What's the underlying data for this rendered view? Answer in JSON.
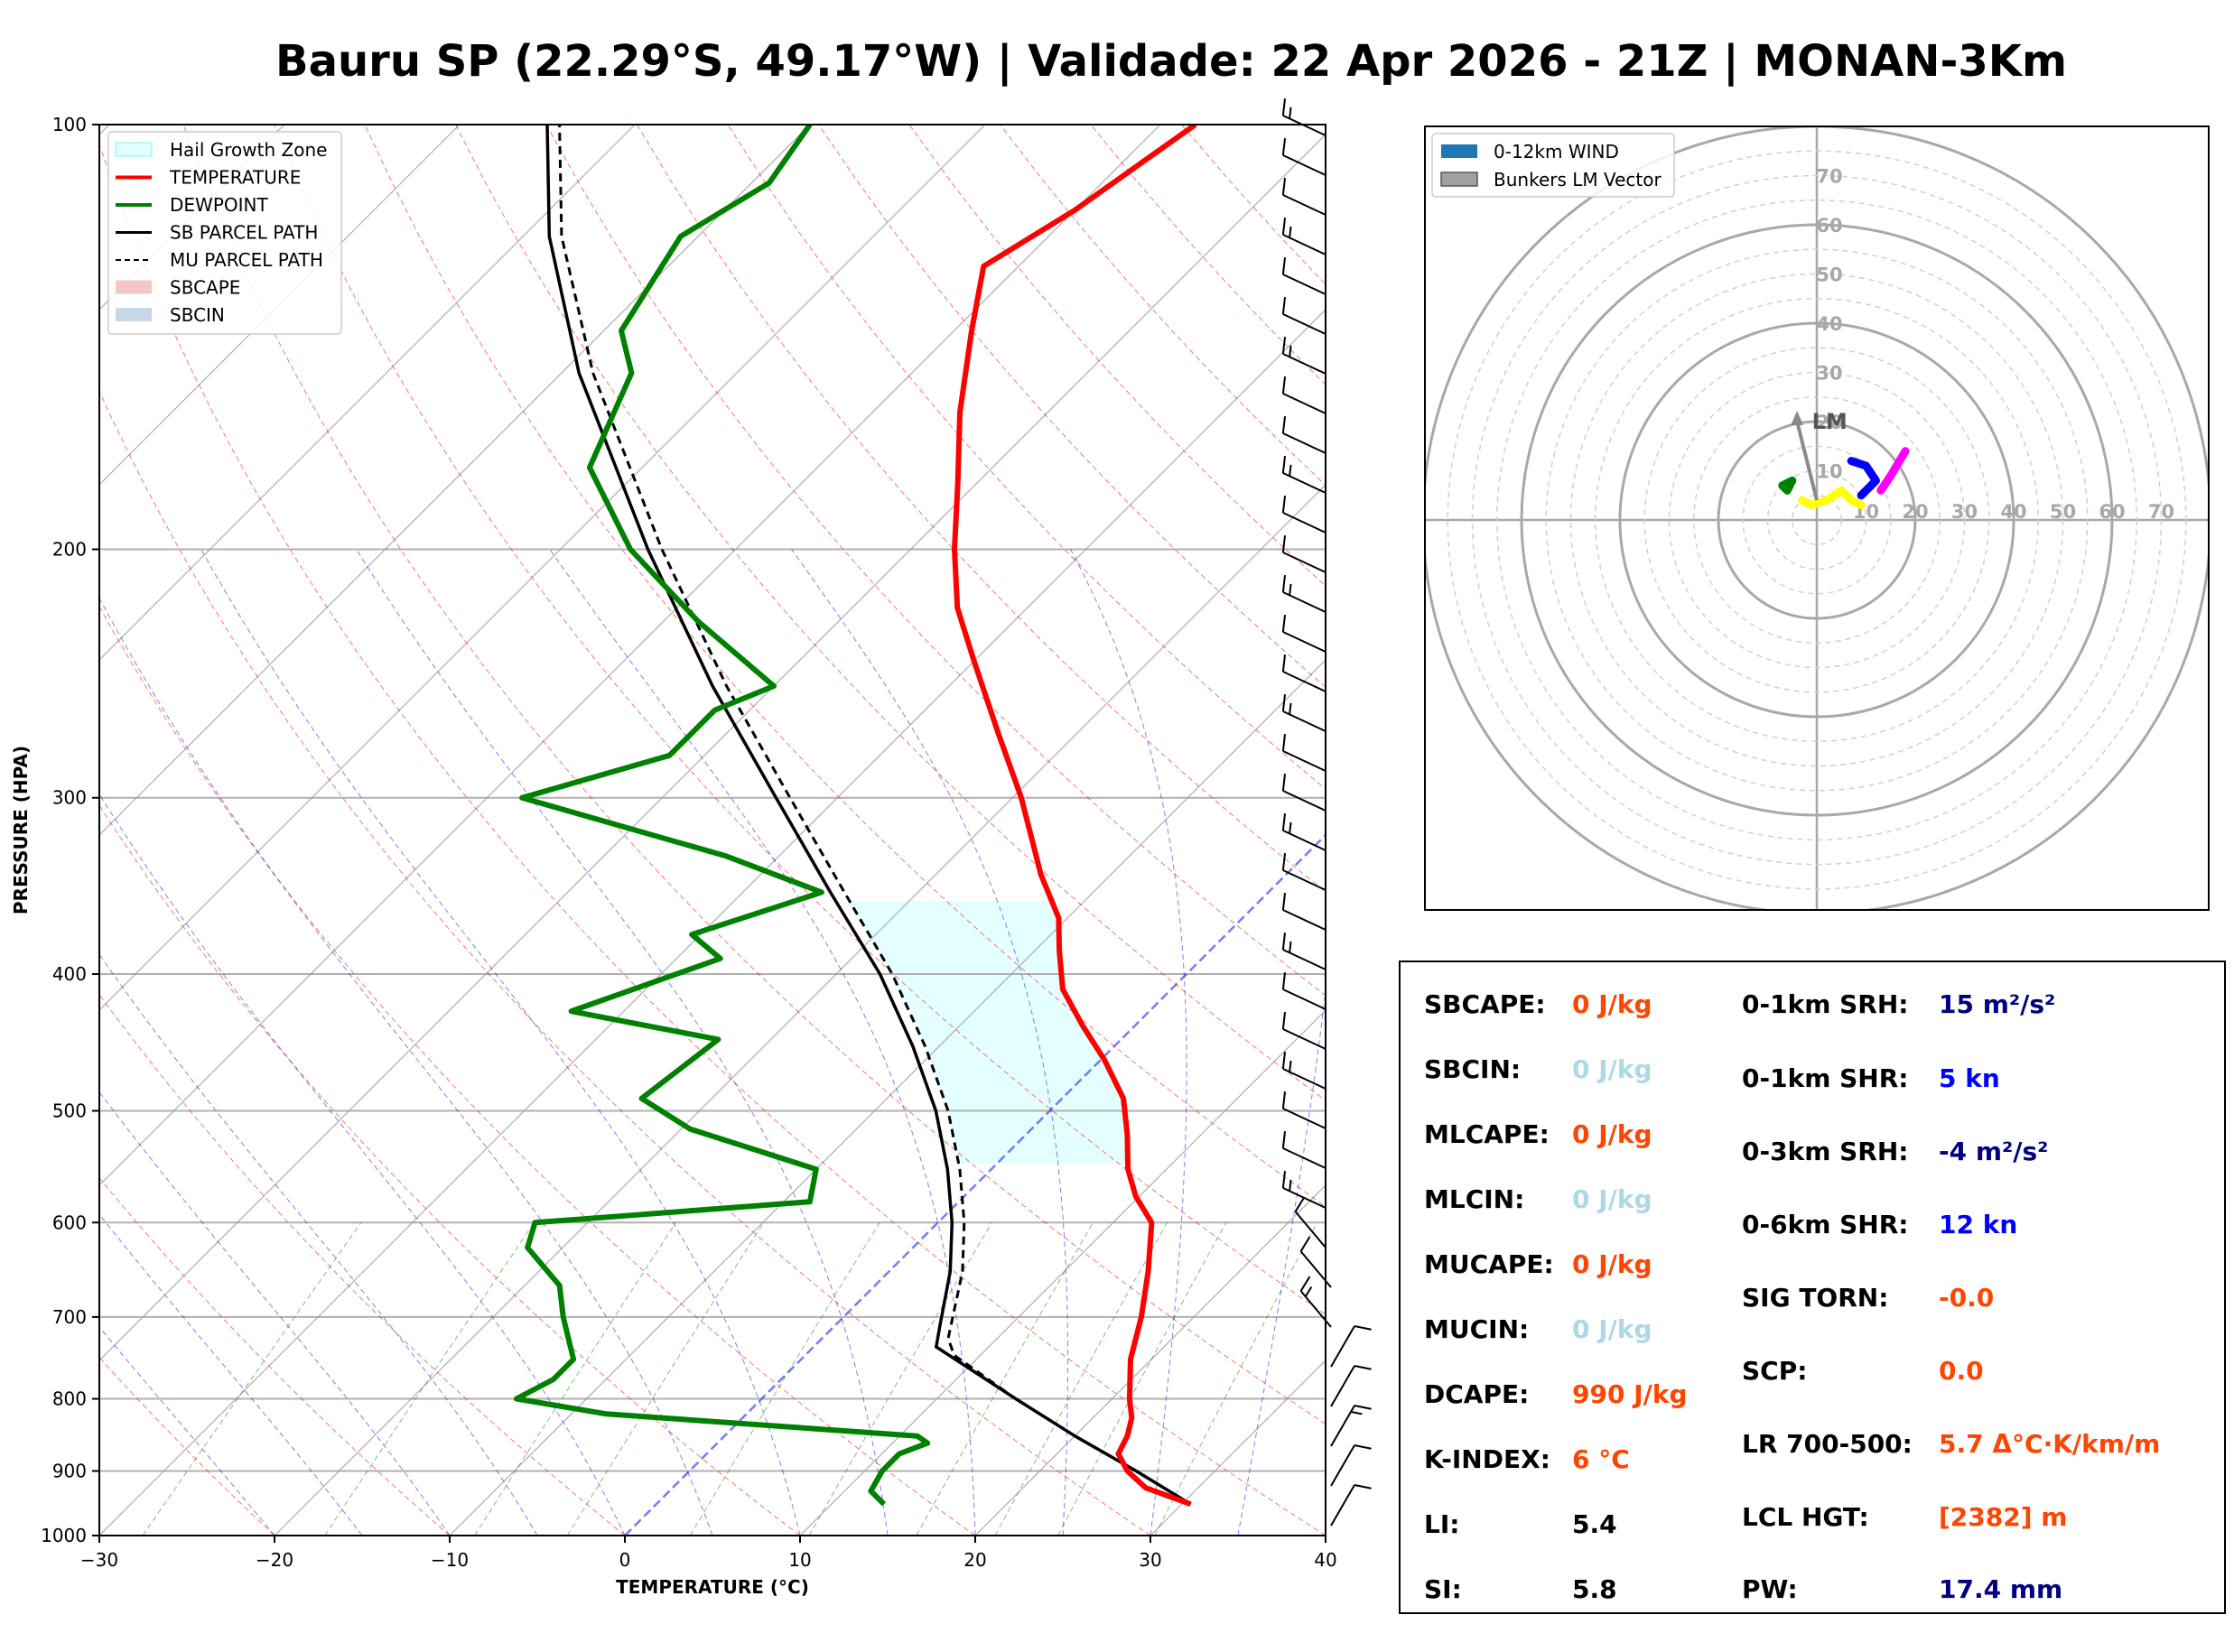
{
  "title": "Bauru SP (22.29°S, 49.17°W) | Validade: 22 Apr 2026 - 21Z | MONAN-3Km",
  "colors": {
    "temperature": "#ff0000",
    "dewpoint": "#008000",
    "hgz": "#e0ffff",
    "dry_adiabat": "#ff0000",
    "moist_adiabat": "#0000ff",
    "mixing_ratio": "#008000",
    "isotherm": "#808080",
    "zero_isotherm": "#4040ff",
    "orange": "#ff4500",
    "lightblue": "#add8e6",
    "navy": "#000080",
    "blue": "#0000ff"
  },
  "chart_data": [
    {
      "type": "skew-t",
      "xlabel": "TEMPERATURE (°C)",
      "ylabel": "PRESSURE (HPA)",
      "xlim": [
        -30,
        40
      ],
      "ylim": [
        1000,
        100
      ],
      "xticks": [
        "−30",
        "−20",
        "−10",
        "0",
        "10",
        "20",
        "30",
        "40"
      ],
      "yticks": [
        "1000",
        "900",
        "800",
        "700",
        "600",
        "500",
        "400",
        "300",
        "200",
        "100"
      ],
      "legend": [
        "Hail Growth Zone",
        "TEMPERATURE",
        "DEWPOINT",
        "SB PARCEL PATH",
        "MU PARCEL PATH",
        "SBCAPE",
        "SBCIN"
      ],
      "hail_growth_zone_hpa": [
        355,
        545
      ],
      "temperature": [
        [
          950,
          30.5
        ],
        [
          925,
          27.0
        ],
        [
          900,
          25.0
        ],
        [
          875,
          23.5
        ],
        [
          850,
          23.0
        ],
        [
          825,
          22.2
        ],
        [
          800,
          21.0
        ],
        [
          750,
          18.8
        ],
        [
          700,
          17.0
        ],
        [
          650,
          14.8
        ],
        [
          600,
          12.2
        ],
        [
          575,
          9.8
        ],
        [
          550,
          7.8
        ],
        [
          520,
          5.8
        ],
        [
          490,
          3.5
        ],
        [
          460,
          0.2
        ],
        [
          435,
          -3.0
        ],
        [
          410,
          -6.2
        ],
        [
          385,
          -8.6
        ],
        [
          365,
          -10.5
        ],
        [
          340,
          -14.0
        ],
        [
          300,
          -19.5
        ],
        [
          270,
          -24.5
        ],
        [
          240,
          -30.0
        ],
        [
          220,
          -34.0
        ],
        [
          200,
          -37.5
        ],
        [
          180,
          -41.0
        ],
        [
          160,
          -45.0
        ],
        [
          140,
          -49.0
        ],
        [
          126,
          -52.0
        ],
        [
          115,
          -50.0
        ],
        [
          100,
          -48.0
        ]
      ],
      "dewpoint": [
        [
          950,
          13.0
        ],
        [
          930,
          11.5
        ],
        [
          900,
          11.0
        ],
        [
          875,
          11.0
        ],
        [
          860,
          12.0
        ],
        [
          850,
          11.0
        ],
        [
          820,
          -8.0
        ],
        [
          800,
          -14.0
        ],
        [
          775,
          -13.0
        ],
        [
          750,
          -13.0
        ],
        [
          700,
          -16.0
        ],
        [
          665,
          -18.0
        ],
        [
          625,
          -22.0
        ],
        [
          600,
          -23.0
        ],
        [
          580,
          -8.5
        ],
        [
          550,
          -10.0
        ],
        [
          515,
          -19.5
        ],
        [
          490,
          -24.0
        ],
        [
          445,
          -23.0
        ],
        [
          425,
          -33.0
        ],
        [
          390,
          -27.5
        ],
        [
          375,
          -30.5
        ],
        [
          350,
          -25.5
        ],
        [
          330,
          -33.0
        ],
        [
          300,
          -48.0
        ],
        [
          280,
          -42.0
        ],
        [
          260,
          -42.0
        ],
        [
          250,
          -40.0
        ],
        [
          225,
          -48.0
        ],
        [
          200,
          -56.0
        ],
        [
          175,
          -63.0
        ],
        [
          150,
          -66.0
        ],
        [
          140,
          -69.0
        ],
        [
          120,
          -71.0
        ],
        [
          110,
          -69.0
        ],
        [
          100,
          -70.0
        ]
      ],
      "sb_parcel": [
        [
          950,
          30.5
        ],
        [
          900,
          25.5
        ],
        [
          850,
          20.0
        ],
        [
          800,
          14.5
        ],
        [
          735,
          7.0
        ],
        [
          710,
          6.0
        ],
        [
          650,
          3.5
        ],
        [
          600,
          0.8
        ],
        [
          550,
          -2.5
        ],
        [
          500,
          -6.5
        ],
        [
          450,
          -11.5
        ],
        [
          400,
          -17.5
        ],
        [
          350,
          -25.0
        ],
        [
          300,
          -33.5
        ],
        [
          250,
          -43.5
        ],
        [
          200,
          -55.0
        ],
        [
          150,
          -69.0
        ],
        [
          120,
          -78.5
        ],
        [
          100,
          -85.0
        ]
      ],
      "mu_parcel": [
        [
          950,
          30.5
        ],
        [
          900,
          25.5
        ],
        [
          850,
          20.0
        ],
        [
          800,
          14.5
        ],
        [
          745,
          8.5
        ],
        [
          725,
          7.2
        ],
        [
          650,
          4.2
        ],
        [
          600,
          1.5
        ],
        [
          550,
          -1.8
        ],
        [
          500,
          -5.8
        ],
        [
          450,
          -10.8
        ],
        [
          400,
          -16.8
        ],
        [
          350,
          -24.2
        ],
        [
          300,
          -32.7
        ],
        [
          250,
          -42.7
        ],
        [
          200,
          -54.2
        ],
        [
          150,
          -68.2
        ],
        [
          120,
          -77.8
        ],
        [
          100,
          -84.3
        ]
      ]
    },
    {
      "type": "hodograph",
      "rings_kn": [
        "10",
        "20",
        "30",
        "40",
        "50",
        "60",
        "70"
      ],
      "legend": [
        "0-12km WIND",
        "Bunkers LM Vector"
      ],
      "lm_label": "LM",
      "segments": [
        {
          "color": "#008000",
          "uv": [
            [
              -6,
              6
            ],
            [
              -7,
              7
            ],
            [
              -5,
              8
            ],
            [
              -6,
              6
            ]
          ]
        },
        {
          "color": "#ffff00",
          "uv": [
            [
              -3,
              4
            ],
            [
              -1,
              3
            ],
            [
              2,
              4
            ],
            [
              5,
              6
            ],
            [
              7,
              4
            ],
            [
              9,
              3
            ]
          ]
        },
        {
          "color": "#0000ff",
          "uv": [
            [
              9,
              5
            ],
            [
              12,
              8
            ],
            [
              10,
              11
            ],
            [
              7,
              12
            ]
          ]
        },
        {
          "color": "#ff00ff",
          "uv": [
            [
              13,
              6
            ],
            [
              15,
              9
            ],
            [
              18,
              14
            ]
          ]
        }
      ],
      "bunkers_lm": [
        -4,
        20
      ]
    }
  ],
  "params": {
    "left": [
      {
        "label": "SBCAPE:",
        "value": "0 J/kg",
        "color": "#ff4500"
      },
      {
        "label": "SBCIN:",
        "value": "0 J/kg",
        "color": "#add8e6"
      },
      {
        "label": "MLCAPE:",
        "value": "0 J/kg",
        "color": "#ff4500"
      },
      {
        "label": "MLCIN:",
        "value": "0 J/kg",
        "color": "#add8e6"
      },
      {
        "label": "MUCAPE:",
        "value": "0 J/kg",
        "color": "#ff4500"
      },
      {
        "label": "MUCIN:",
        "value": "0 J/kg",
        "color": "#add8e6"
      },
      {
        "label": "DCAPE:",
        "value": "990 J/kg",
        "color": "#ff4500"
      },
      {
        "label": "K-INDEX:",
        "value": "6 °C",
        "color": "#ff4500"
      },
      {
        "label": "LI:",
        "value": "5.4",
        "color": "#000000"
      },
      {
        "label": "SI:",
        "value": "5.8",
        "color": "#000000"
      }
    ],
    "right": [
      {
        "label": "0-1km SRH:",
        "value": "15 m²/s²",
        "color": "#000080"
      },
      {
        "label": "0-1km SHR:",
        "value": "5 kn",
        "color": "#0000ff"
      },
      {
        "label": "0-3km SRH:",
        "value": "-4 m²/s²",
        "color": "#000080"
      },
      {
        "label": "0-6km SHR:",
        "value": "12 kn",
        "color": "#0000ff"
      },
      {
        "label": "SIG TORN:",
        "value": "-0.0",
        "color": "#ff4500"
      },
      {
        "label": "SCP:",
        "value": "0.0",
        "color": "#ff4500"
      },
      {
        "label": "LR 700-500:",
        "value": "5.7 Δ°C·K/km/m",
        "color": "#ff4500"
      },
      {
        "label": "LCL HGT:",
        "value": "[2382] m",
        "color": "#ff4500"
      },
      {
        "label": "PW:",
        "value": "17.4 mm",
        "color": "#000080"
      }
    ]
  }
}
